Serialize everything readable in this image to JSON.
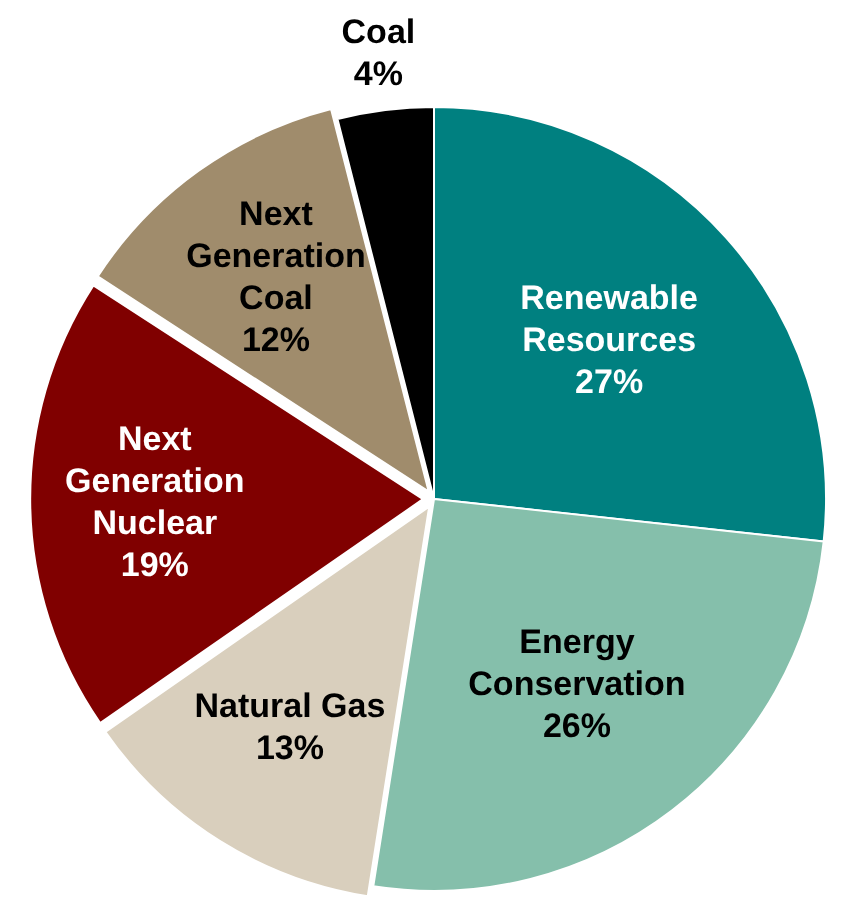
{
  "chart_data": {
    "type": "pie",
    "categories": [
      "Renewable Resources",
      "Energy Conservation",
      "Natural Gas",
      "Next Generation Nuclear",
      "Next Generation Coal",
      "Coal"
    ],
    "values": [
      27,
      26,
      13,
      19,
      12,
      4
    ],
    "value_labels": [
      "27%",
      "26%",
      "13%",
      "19%",
      "12%",
      "4%"
    ],
    "colors": [
      "#008080",
      "#85bfab",
      "#d9cfbd",
      "#800000",
      "#a08c6c",
      "#000000"
    ],
    "legend": false
  }
}
